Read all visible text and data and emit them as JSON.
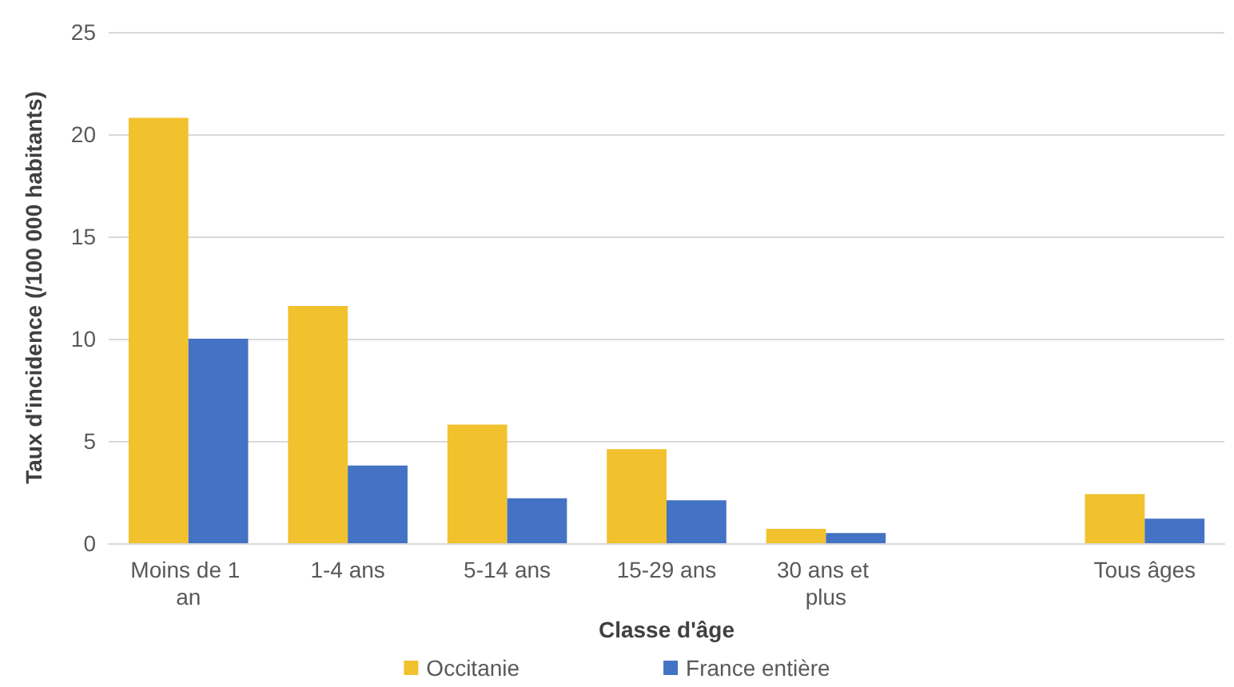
{
  "chart_data": {
    "type": "bar",
    "xlabel": "Classe d'âge",
    "ylabel": "Taux d'incidence (/100 000 habitants)",
    "categories": [
      "Moins de 1 an",
      "1-4 ans",
      "5-14 ans",
      "15-29 ans",
      "30 ans et plus",
      null,
      "Tous âges"
    ],
    "series": [
      {
        "name": "Occitanie",
        "color": "#f2c12e",
        "values": [
          20.8,
          11.6,
          5.8,
          4.6,
          0.7,
          null,
          2.4
        ]
      },
      {
        "name": "France entière",
        "color": "#4472c4",
        "values": [
          10.0,
          3.8,
          2.2,
          2.1,
          0.5,
          null,
          1.2
        ]
      }
    ],
    "ylim": [
      0,
      25
    ],
    "yticks": [
      0,
      5,
      10,
      15,
      20,
      25
    ],
    "grid": "y",
    "legend": "bottom"
  }
}
